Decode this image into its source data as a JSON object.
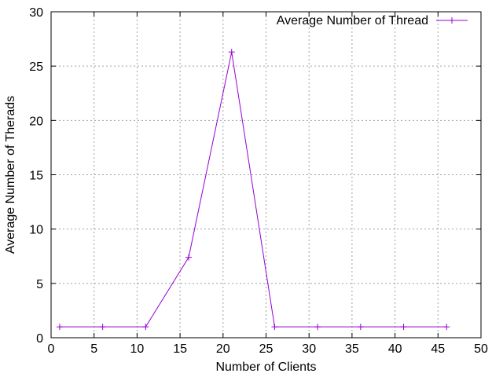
{
  "chart_data": {
    "type": "line",
    "title": "",
    "xlabel": "Number of Clients",
    "ylabel": "Average Number of Therads",
    "xlim": [
      0,
      50
    ],
    "ylim": [
      0,
      30
    ],
    "xticks": [
      0,
      5,
      10,
      15,
      20,
      25,
      30,
      35,
      40,
      45,
      50
    ],
    "yticks": [
      0,
      5,
      10,
      15,
      20,
      25,
      30
    ],
    "grid": true,
    "legend_position": "top-right",
    "series": [
      {
        "name": "Average Number of Thread",
        "color": "#9400d3",
        "marker": "plus",
        "x": [
          1,
          6,
          11,
          16,
          21,
          26,
          31,
          36,
          41,
          46
        ],
        "y": [
          1,
          1,
          1,
          7.4,
          26.3,
          1,
          1,
          1,
          1,
          1
        ]
      }
    ]
  }
}
